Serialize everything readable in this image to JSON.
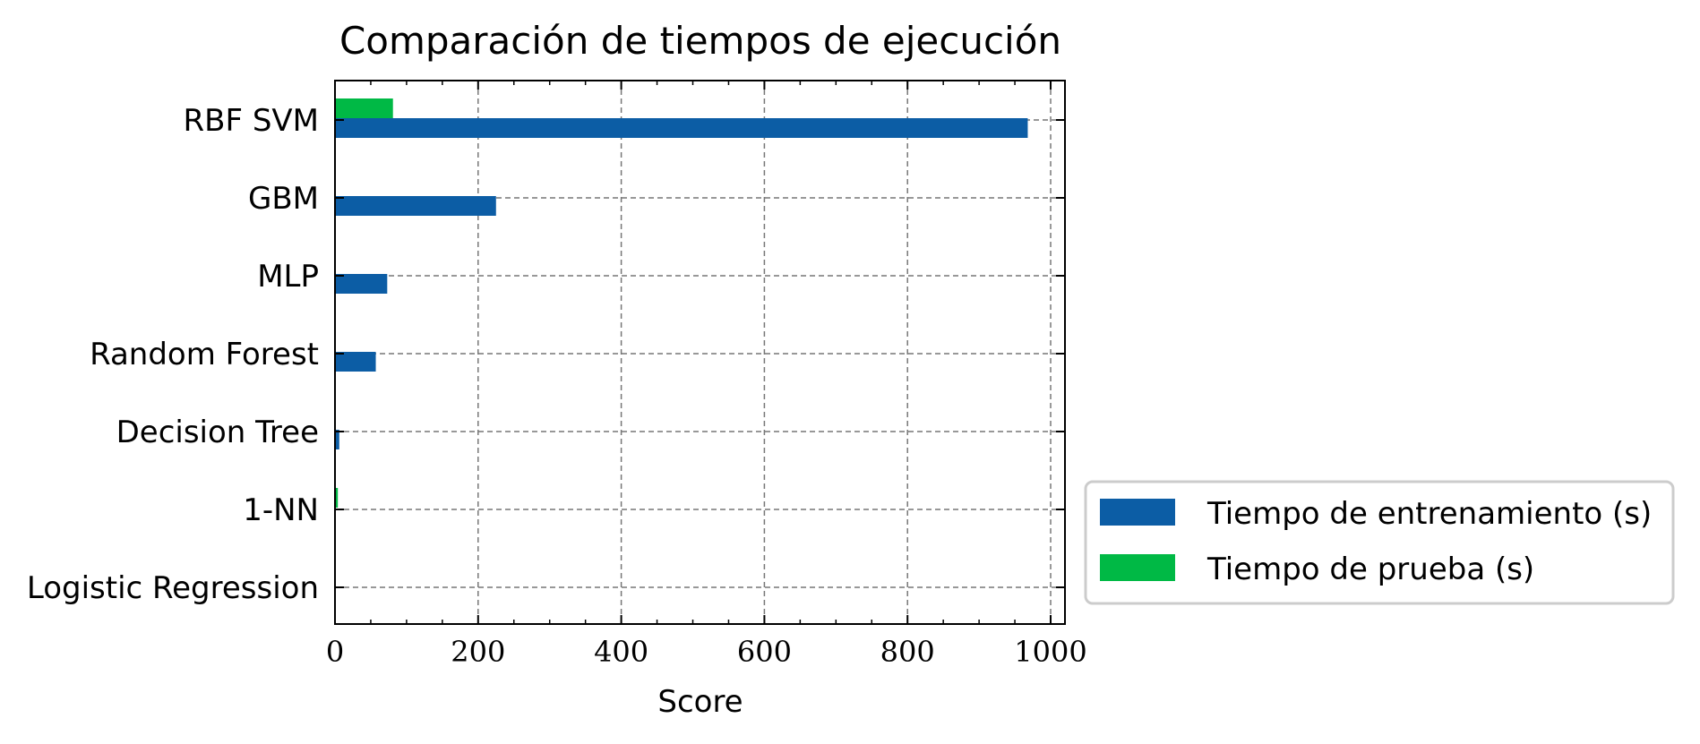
{
  "chart_data": {
    "type": "bar",
    "orientation": "horizontal",
    "title": "Comparación de tiempos de ejecución",
    "xlabel": "Score",
    "ylabel": "",
    "xlim": [
      0,
      1020
    ],
    "xticks": [
      "0",
      "200",
      "400",
      "600",
      "800",
      "1000"
    ],
    "grid": true,
    "legend_position": "right-bottom-outside",
    "categories": [
      "RBF SVM",
      "GBM",
      "MLP",
      "Random Forest",
      "Decision Tree",
      "1-NN",
      "Logistic Regression"
    ],
    "series": [
      {
        "name": "Tiempo de entrenamiento (s)",
        "color": "#0c5da5",
        "values": [
          968,
          225,
          73,
          57,
          6,
          0.5,
          1
        ]
      },
      {
        "name": "Tiempo de prueba (s)",
        "color": "#00b945",
        "values": [
          81,
          0.3,
          0.3,
          0.3,
          0.2,
          4,
          0.1
        ]
      }
    ]
  }
}
